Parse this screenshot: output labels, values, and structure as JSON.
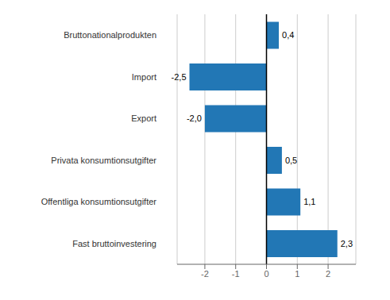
{
  "chart_data": {
    "type": "bar",
    "orientation": "horizontal",
    "categories": [
      "Fast bruttoinvestering",
      "Offentliga konsumtionsutgifter",
      "Privata konsumtionsutgifter",
      "Export",
      "Import",
      "Bruttonationalprodukten"
    ],
    "values": [
      2.3,
      1.1,
      0.5,
      -2.0,
      -2.5,
      0.4
    ],
    "value_labels": [
      "2,3",
      "1,1",
      "0,5",
      "-2,0",
      "-2,5",
      "0,4"
    ],
    "color": "#2277b5",
    "xlim": [
      -2.9,
      2.9
    ],
    "xticks": [
      -2,
      -1,
      0,
      1,
      2
    ],
    "grid": true,
    "data_labels": true
  }
}
